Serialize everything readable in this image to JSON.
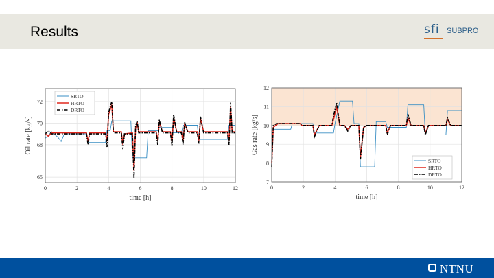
{
  "slide": {
    "title": "Results"
  },
  "logo": {
    "mark": "sfi",
    "text": "SUBPRO"
  },
  "footer": {
    "brand": "NTNU",
    "colors": {
      "bar": "#00509e"
    }
  },
  "chart_data": [
    {
      "type": "line",
      "title": "",
      "xlabel": "time [h]",
      "ylabel": "Oil rate [kg/s]",
      "xlim": [
        0,
        12
      ],
      "ylim": [
        64.5,
        73.2
      ],
      "xticks": [
        0,
        2,
        4,
        6,
        8,
        10,
        12
      ],
      "yticks": [
        65,
        68,
        70,
        72
      ],
      "grid": true,
      "legend_position": "top-left",
      "series": [
        {
          "name": "SRTO",
          "color": "#3a8fc4",
          "style": "solid",
          "points": [
            [
              0,
              68.6
            ],
            [
              0.4,
              69.2
            ],
            [
              0.8,
              68.7
            ],
            [
              1.0,
              68.3
            ],
            [
              1.2,
              69.0
            ],
            [
              2.6,
              69.0
            ],
            [
              2.7,
              68.2
            ],
            [
              3.8,
              68.2
            ],
            [
              3.9,
              69.3
            ],
            [
              4.1,
              69.3
            ],
            [
              4.2,
              70.2
            ],
            [
              5.4,
              70.2
            ],
            [
              5.5,
              66.8
            ],
            [
              6.4,
              66.8
            ],
            [
              6.5,
              69.3
            ],
            [
              7.1,
              69.3
            ],
            [
              7.2,
              69.6
            ],
            [
              8.0,
              69.6
            ],
            [
              8.1,
              69.1
            ],
            [
              8.6,
              69.1
            ],
            [
              8.7,
              69.8
            ],
            [
              9.6,
              69.8
            ],
            [
              9.7,
              68.5
            ],
            [
              11.5,
              68.5
            ],
            [
              11.6,
              69.8
            ],
            [
              12,
              69.8
            ]
          ]
        },
        {
          "name": "HRTO",
          "color": "#e0281e",
          "style": "solid",
          "points": [
            [
              0,
              69.0
            ],
            [
              0.2,
              68.8
            ],
            [
              0.4,
              69.1
            ],
            [
              2.6,
              69.1
            ],
            [
              2.7,
              68.3
            ],
            [
              2.8,
              69.1
            ],
            [
              3.8,
              69.1
            ],
            [
              3.9,
              68.3
            ],
            [
              4.0,
              70.8
            ],
            [
              4.2,
              71.7
            ],
            [
              4.3,
              69.2
            ],
            [
              4.8,
              69.2
            ],
            [
              4.9,
              68.0
            ],
            [
              5.0,
              69.0
            ],
            [
              5.5,
              69.1
            ],
            [
              5.6,
              65.6
            ],
            [
              5.7,
              69.5
            ],
            [
              5.8,
              70.1
            ],
            [
              5.9,
              69.2
            ],
            [
              7.0,
              69.2
            ],
            [
              7.1,
              68.4
            ],
            [
              7.2,
              70.1
            ],
            [
              7.4,
              69.2
            ],
            [
              7.9,
              69.2
            ],
            [
              8.0,
              68.3
            ],
            [
              8.1,
              70.5
            ],
            [
              8.3,
              69.2
            ],
            [
              8.6,
              69.2
            ],
            [
              8.7,
              68.3
            ],
            [
              8.8,
              70.0
            ],
            [
              9.0,
              69.2
            ],
            [
              9.6,
              69.2
            ],
            [
              9.7,
              68.4
            ],
            [
              9.8,
              70.4
            ],
            [
              10.0,
              69.2
            ],
            [
              11.5,
              69.2
            ],
            [
              11.6,
              68.4
            ],
            [
              11.7,
              71.5
            ],
            [
              11.8,
              69.2
            ],
            [
              12,
              69.2
            ]
          ]
        },
        {
          "name": "DRTO",
          "color": "#000000",
          "style": "dashdot",
          "points": [
            [
              0,
              69.0
            ],
            [
              0.2,
              69.3
            ],
            [
              0.4,
              69.0
            ],
            [
              2.6,
              69.0
            ],
            [
              2.7,
              68.0
            ],
            [
              2.8,
              69.0
            ],
            [
              3.8,
              69.0
            ],
            [
              3.9,
              67.8
            ],
            [
              4.0,
              71.0
            ],
            [
              4.2,
              72.0
            ],
            [
              4.3,
              69.1
            ],
            [
              4.8,
              69.1
            ],
            [
              4.9,
              67.6
            ],
            [
              5.0,
              69.0
            ],
            [
              5.5,
              69.0
            ],
            [
              5.6,
              64.9
            ],
            [
              5.7,
              69.7
            ],
            [
              5.8,
              70.2
            ],
            [
              5.9,
              69.1
            ],
            [
              7.0,
              69.1
            ],
            [
              7.1,
              68.0
            ],
            [
              7.2,
              70.3
            ],
            [
              7.4,
              69.1
            ],
            [
              7.9,
              69.1
            ],
            [
              8.0,
              67.9
            ],
            [
              8.1,
              70.8
            ],
            [
              8.3,
              69.1
            ],
            [
              8.6,
              69.1
            ],
            [
              8.7,
              68.0
            ],
            [
              8.8,
              70.1
            ],
            [
              9.0,
              69.1
            ],
            [
              9.6,
              69.1
            ],
            [
              9.7,
              68.1
            ],
            [
              9.8,
              70.6
            ],
            [
              10.0,
              69.1
            ],
            [
              11.5,
              69.1
            ],
            [
              11.6,
              68.0
            ],
            [
              11.7,
              71.9
            ],
            [
              11.8,
              69.1
            ],
            [
              12,
              69.1
            ]
          ]
        }
      ]
    },
    {
      "type": "line",
      "title": "",
      "xlabel": "time [h]",
      "ylabel": "Gas rate [kg/s]",
      "xlim": [
        0,
        12
      ],
      "ylim": [
        7,
        12
      ],
      "xticks": [
        0,
        2,
        4,
        6,
        8,
        10,
        12
      ],
      "yticks": [
        7,
        8,
        9,
        10,
        11,
        12
      ],
      "grid": true,
      "legend_position": "bottom-right",
      "shaded_region": {
        "y_from": 10,
        "y_to": 12,
        "color": "#fbe4d2"
      },
      "series": [
        {
          "name": "SRTO",
          "color": "#3a8fc4",
          "style": "solid",
          "points": [
            [
              0,
              8.4
            ],
            [
              0.1,
              9.8
            ],
            [
              1.2,
              9.8
            ],
            [
              1.3,
              10.1
            ],
            [
              2.6,
              10.1
            ],
            [
              2.7,
              9.6
            ],
            [
              3.9,
              9.6
            ],
            [
              4.0,
              10.1
            ],
            [
              4.3,
              11.3
            ],
            [
              5.1,
              11.3
            ],
            [
              5.2,
              10.1
            ],
            [
              5.5,
              10.1
            ],
            [
              5.6,
              7.8
            ],
            [
              6.5,
              7.8
            ],
            [
              6.6,
              10.2
            ],
            [
              7.2,
              10.2
            ],
            [
              7.3,
              9.9
            ],
            [
              8.5,
              9.9
            ],
            [
              8.6,
              11.1
            ],
            [
              9.6,
              11.1
            ],
            [
              9.7,
              9.5
            ],
            [
              11.0,
              9.5
            ],
            [
              11.1,
              10.8
            ],
            [
              12,
              10.8
            ]
          ]
        },
        {
          "name": "HRTO",
          "color": "#e0281e",
          "style": "solid",
          "points": [
            [
              0,
              8.0
            ],
            [
              0.1,
              9.9
            ],
            [
              0.4,
              10.1
            ],
            [
              1.8,
              10.1
            ],
            [
              1.9,
              10.0
            ],
            [
              2.6,
              10.0
            ],
            [
              2.7,
              9.5
            ],
            [
              3.0,
              10.0
            ],
            [
              3.8,
              10.0
            ],
            [
              3.9,
              10.3
            ],
            [
              4.1,
              11.0
            ],
            [
              4.3,
              10.0
            ],
            [
              4.6,
              10.0
            ],
            [
              4.8,
              9.8
            ],
            [
              5.0,
              10.0
            ],
            [
              5.5,
              10.0
            ],
            [
              5.6,
              8.3
            ],
            [
              5.8,
              9.9
            ],
            [
              6.0,
              10.0
            ],
            [
              7.2,
              10.0
            ],
            [
              7.3,
              9.6
            ],
            [
              7.5,
              10.0
            ],
            [
              8.5,
              10.0
            ],
            [
              8.6,
              10.4
            ],
            [
              8.8,
              10.0
            ],
            [
              9.6,
              10.0
            ],
            [
              9.7,
              9.6
            ],
            [
              9.9,
              10.0
            ],
            [
              11.0,
              10.0
            ],
            [
              11.1,
              10.3
            ],
            [
              11.3,
              10.0
            ],
            [
              12,
              10.0
            ]
          ]
        },
        {
          "name": "DRTO",
          "color": "#000000",
          "style": "dashdot",
          "points": [
            [
              0,
              7.8
            ],
            [
              0.1,
              10.0
            ],
            [
              0.3,
              10.1
            ],
            [
              1.8,
              10.1
            ],
            [
              1.9,
              10.0
            ],
            [
              2.6,
              10.0
            ],
            [
              2.7,
              9.4
            ],
            [
              3.0,
              10.0
            ],
            [
              3.8,
              10.0
            ],
            [
              3.9,
              10.5
            ],
            [
              4.1,
              11.2
            ],
            [
              4.3,
              10.0
            ],
            [
              4.6,
              10.0
            ],
            [
              4.8,
              9.7
            ],
            [
              5.0,
              10.0
            ],
            [
              5.5,
              10.0
            ],
            [
              5.6,
              8.2
            ],
            [
              5.8,
              9.9
            ],
            [
              6.0,
              10.0
            ],
            [
              7.2,
              10.0
            ],
            [
              7.3,
              9.5
            ],
            [
              7.5,
              10.0
            ],
            [
              8.5,
              10.0
            ],
            [
              8.6,
              10.6
            ],
            [
              8.8,
              10.0
            ],
            [
              9.6,
              10.0
            ],
            [
              9.7,
              9.5
            ],
            [
              9.9,
              10.0
            ],
            [
              11.0,
              10.0
            ],
            [
              11.1,
              10.4
            ],
            [
              11.3,
              10.0
            ],
            [
              12,
              10.0
            ]
          ]
        }
      ]
    }
  ]
}
